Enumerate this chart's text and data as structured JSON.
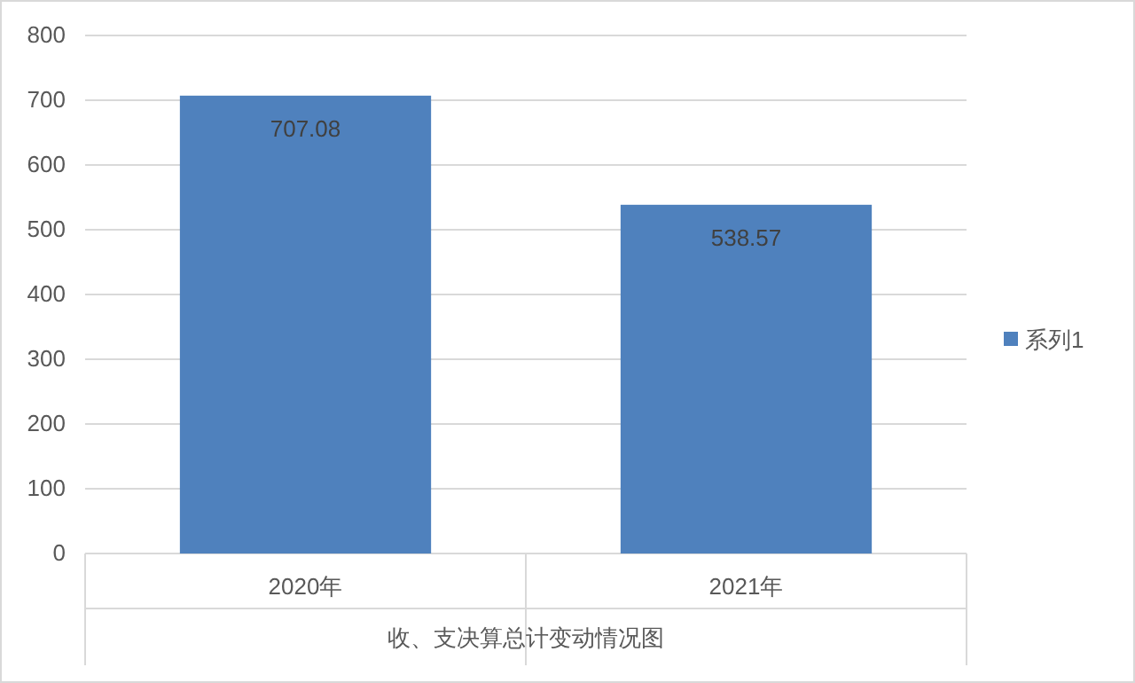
{
  "chart_data": {
    "type": "bar",
    "xlabel": "收、支决算总计变动情况图",
    "categories": [
      "2020年",
      "2021年"
    ],
    "series": [
      {
        "name": "系列1",
        "color": "#4f81bd",
        "values": [
          707.08,
          538.57
        ]
      }
    ],
    "ylim": [
      0,
      800
    ],
    "yticks": [
      0,
      100,
      200,
      300,
      400,
      500,
      600,
      700,
      800
    ],
    "grid": "y",
    "legend": "right",
    "data_labels": true
  }
}
